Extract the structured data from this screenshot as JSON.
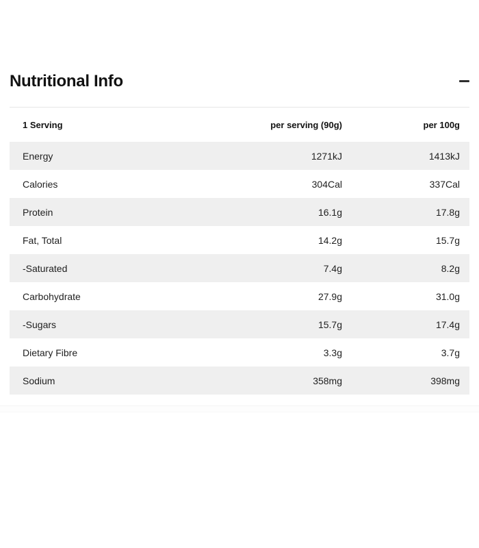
{
  "section": {
    "title": "Nutritional Info"
  },
  "icons": {
    "collapse": "minus-icon"
  },
  "table": {
    "headers": [
      "1 Serving",
      "per serving (90g)",
      "per 100g"
    ],
    "rows": [
      {
        "label": "Energy",
        "per_serving": "1271kJ",
        "per_100g": "1413kJ"
      },
      {
        "label": "Calories",
        "per_serving": "304Cal",
        "per_100g": "337Cal"
      },
      {
        "label": "Protein",
        "per_serving": "16.1g",
        "per_100g": "17.8g"
      },
      {
        "label": "Fat, Total",
        "per_serving": "14.2g",
        "per_100g": "15.7g"
      },
      {
        "label": "-Saturated",
        "per_serving": "7.4g",
        "per_100g": "8.2g"
      },
      {
        "label": "Carbohydrate",
        "per_serving": "27.9g",
        "per_100g": "31.0g"
      },
      {
        "label": "-Sugars",
        "per_serving": "15.7g",
        "per_100g": "17.4g"
      },
      {
        "label": "Dietary Fibre",
        "per_serving": "3.3g",
        "per_100g": "3.7g"
      },
      {
        "label": "Sodium",
        "per_serving": "358mg",
        "per_100g": "398mg"
      }
    ]
  },
  "colors": {
    "row_shade": "#efefef",
    "table_border": "#e6e6e6",
    "text": "#212121",
    "icon": "#2d2d2d"
  }
}
